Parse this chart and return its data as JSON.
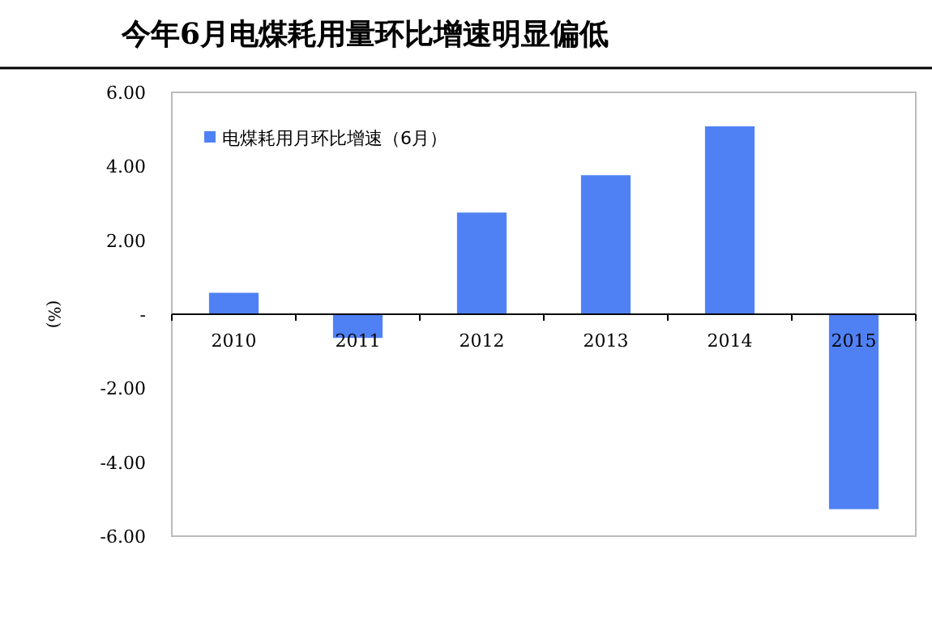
{
  "chart_data": {
    "type": "bar",
    "title": "今年6月电煤耗用量环比增速明显偏低",
    "ylabel": "(%)",
    "categories": [
      "2010",
      "2011",
      "2012",
      "2013",
      "2014",
      "2015"
    ],
    "series": [
      {
        "name": "电煤耗用月环比增速（6月）",
        "color": "#4f81f5",
        "values": [
          0.58,
          -0.64,
          2.75,
          3.76,
          5.08,
          -5.27
        ]
      }
    ],
    "ylim": [
      -6,
      6
    ],
    "yticks": [
      {
        "value": -6,
        "label": "-6.00"
      },
      {
        "value": -4,
        "label": "-4.00"
      },
      {
        "value": -2,
        "label": "-2.00"
      },
      {
        "value": 0,
        "label": "-"
      },
      {
        "value": 2,
        "label": "2.00"
      },
      {
        "value": 4,
        "label": "4.00"
      },
      {
        "value": 6,
        "label": "6.00"
      }
    ],
    "legend": "top left"
  }
}
